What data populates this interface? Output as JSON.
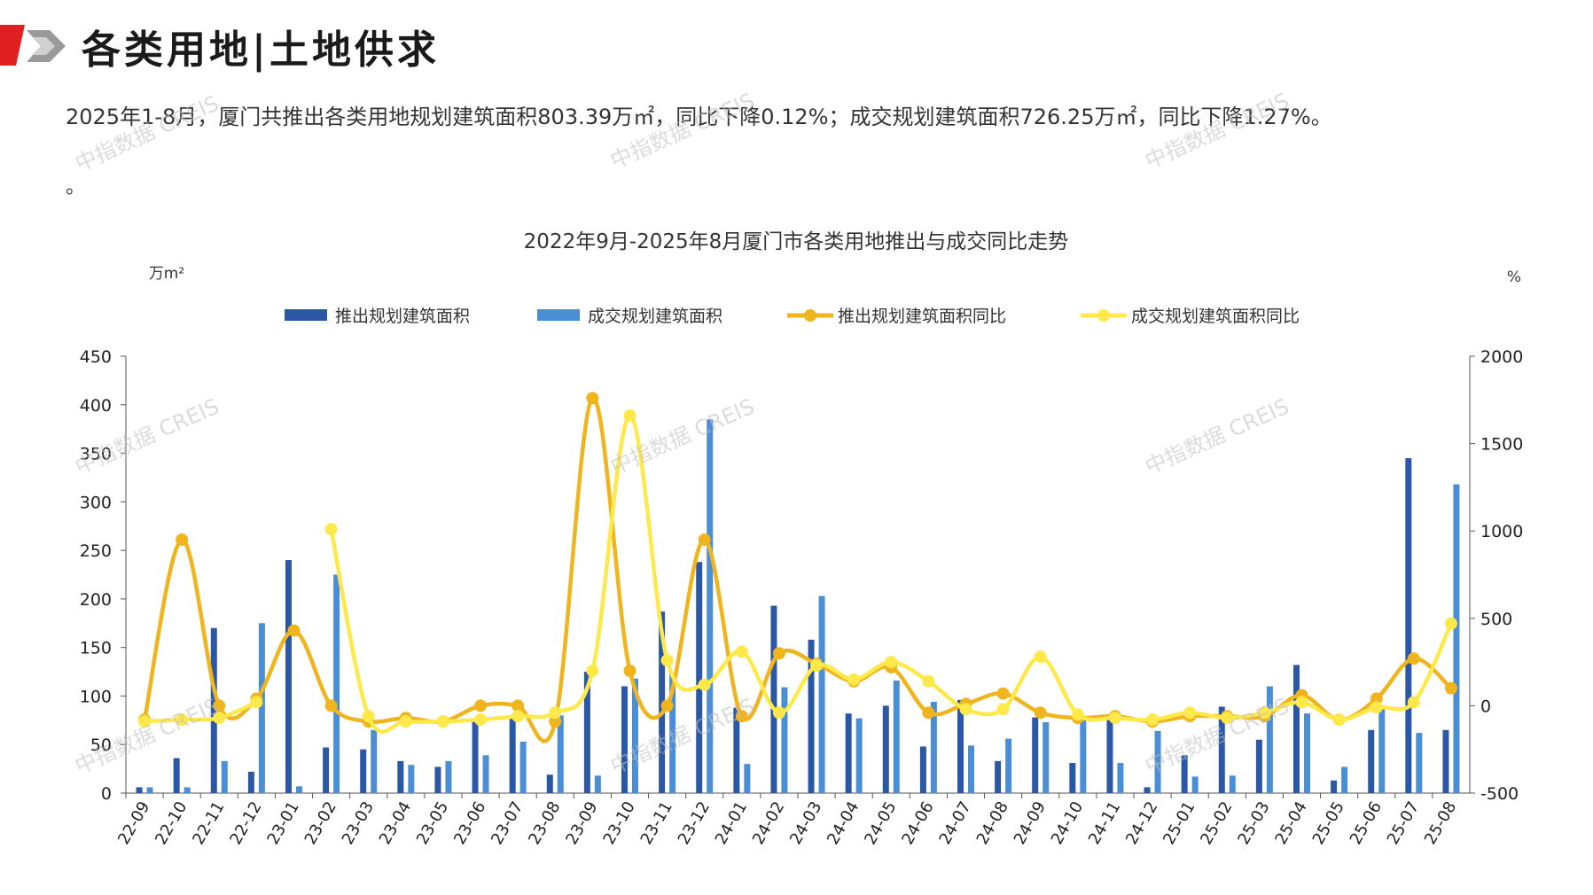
{
  "header": {
    "title": "各类用地|土地供求"
  },
  "summary": {
    "text": "2025年1-8月，厦门共推出各类用地规划建筑面积803.39万㎡，同比下降0.12%；成交规划建筑面积726.25万㎡，同比下降1.27%。",
    "tail": "。"
  },
  "watermark": {
    "text": "中指数据 CREIS"
  },
  "colors": {
    "launch_bar": "#2b58a6",
    "deal_bar": "#4a8fd6",
    "launch_line": "#f0b41c",
    "deal_line": "#ffe94a",
    "brand_red": "#e02020",
    "brand_gray": "#8c8c8c"
  },
  "chart_data": {
    "type": "bar",
    "title": "2022年9月-2025年8月厦门市各类用地推出与成交同比走势",
    "ylabel": "万m²",
    "y2label": "%",
    "ylim": [
      0,
      450
    ],
    "y2lim": [
      -500,
      2000
    ],
    "yticks": [
      0,
      50,
      100,
      150,
      200,
      250,
      300,
      350,
      400,
      450
    ],
    "y2ticks": [
      -500,
      0,
      500,
      1000,
      1500,
      2000
    ],
    "legend_position": "top",
    "grid": false,
    "categories": [
      "22-09",
      "22-10",
      "22-11",
      "22-12",
      "23-01",
      "23-02",
      "23-03",
      "23-04",
      "23-05",
      "23-06",
      "23-07",
      "23-08",
      "23-09",
      "23-10",
      "23-11",
      "23-12",
      "24-01",
      "24-02",
      "24-03",
      "24-04",
      "24-05",
      "24-06",
      "24-07",
      "24-08",
      "24-09",
      "24-10",
      "24-11",
      "24-12",
      "25-01",
      "25-02",
      "25-03",
      "25-04",
      "25-05",
      "25-06",
      "25-07",
      "25-08"
    ],
    "series": [
      {
        "name": "推出规划建筑面积",
        "kind": "bar",
        "axis": "left",
        "color": "#2b58a6",
        "values": [
          6,
          36,
          170,
          22,
          240,
          47,
          45,
          33,
          27,
          76,
          80,
          19,
          125,
          110,
          187,
          238,
          88,
          193,
          158,
          82,
          90,
          48,
          96,
          33,
          78,
          31,
          80,
          6,
          39,
          89,
          55,
          132,
          13,
          65,
          345,
          65
        ]
      },
      {
        "name": "成交规划建筑面积",
        "kind": "bar",
        "axis": "left",
        "color": "#4a8fd6",
        "values": [
          6,
          6,
          33,
          175,
          7,
          225,
          65,
          29,
          33,
          39,
          53,
          80,
          18,
          118,
          123,
          385,
          30,
          109,
          203,
          77,
          116,
          94,
          49,
          56,
          73,
          75,
          31,
          64,
          17,
          18,
          110,
          82,
          27,
          88,
          62,
          318
        ]
      },
      {
        "name": "推出规划建筑面积同比",
        "kind": "line",
        "axis": "right",
        "color": "#f0b41c",
        "values": [
          -80,
          950,
          0,
          40,
          430,
          0,
          -90,
          -70,
          -90,
          0,
          0,
          -90,
          1760,
          200,
          0,
          950,
          -60,
          300,
          240,
          140,
          220,
          -40,
          10,
          70,
          -40,
          -70,
          -60,
          -90,
          -60,
          -60,
          -60,
          60,
          -80,
          40,
          270,
          100
        ]
      },
      {
        "name": "成交规划建筑面积同比",
        "kind": "line",
        "axis": "right",
        "color": "#ffe94a",
        "values": [
          -90,
          -80,
          -70,
          20,
          null,
          1010,
          -60,
          -90,
          -90,
          -80,
          -60,
          -40,
          200,
          1660,
          260,
          120,
          310,
          -40,
          230,
          150,
          250,
          140,
          -20,
          -20,
          280,
          -50,
          -70,
          -80,
          -40,
          -70,
          -40,
          20,
          -80,
          -10,
          20,
          470
        ]
      }
    ]
  }
}
